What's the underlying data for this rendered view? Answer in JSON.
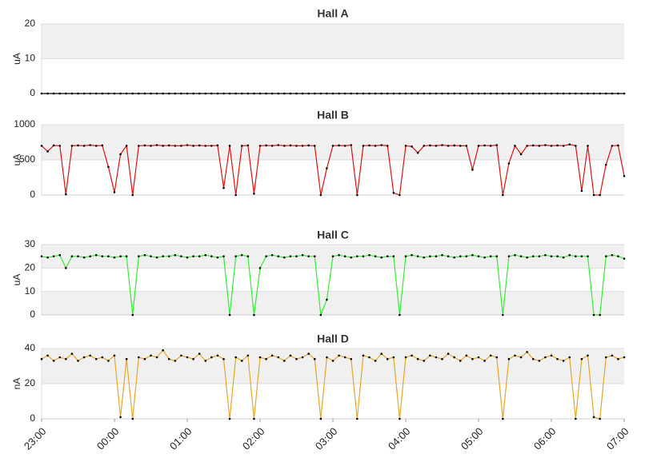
{
  "chart_data": [
    {
      "type": "line",
      "title": "Hall A",
      "y_label": "uA",
      "color": "#000000",
      "marker_color": "#000000",
      "x": [
        0,
        5,
        10,
        15,
        20,
        25,
        30,
        35,
        40,
        45,
        50,
        55,
        60,
        65,
        70,
        75,
        80,
        85,
        90,
        95,
        100,
        105,
        110,
        115,
        120,
        125,
        130,
        135,
        140,
        145,
        150,
        155,
        160,
        165,
        170,
        175,
        180,
        185,
        190,
        195,
        200,
        205,
        210,
        215,
        220,
        225,
        230,
        235,
        240,
        245,
        250,
        255,
        260,
        265,
        270,
        275,
        280,
        285,
        290,
        295,
        300,
        305,
        310,
        315,
        320,
        325,
        330,
        335,
        340,
        345,
        350,
        355,
        360,
        365,
        370,
        375,
        380,
        385,
        390,
        395,
        400,
        405,
        410,
        415,
        420,
        425,
        430,
        435,
        440,
        445,
        450,
        455,
        460,
        465,
        470,
        475,
        480
      ],
      "values": [
        0,
        0,
        0,
        0,
        0,
        0,
        0,
        0,
        0,
        0,
        0,
        0,
        0,
        0,
        0,
        0,
        0,
        0,
        0,
        0,
        0,
        0,
        0,
        0,
        0,
        0,
        0,
        0,
        0,
        0,
        0,
        0,
        0,
        0,
        0,
        0,
        0,
        0,
        0,
        0,
        0,
        0,
        0,
        0,
        0,
        0,
        0,
        0,
        0,
        0,
        0,
        0,
        0,
        0,
        0,
        0,
        0,
        0,
        0,
        0,
        0,
        0,
        0,
        0,
        0,
        0,
        0,
        0,
        0,
        0,
        0,
        0,
        0,
        0,
        0,
        0,
        0,
        0,
        0,
        0,
        0,
        0,
        0,
        0,
        0,
        0,
        0,
        0,
        0,
        0,
        0,
        0,
        0,
        0,
        0,
        0,
        0
      ],
      "xlim": [
        0,
        480
      ],
      "ylim": [
        0,
        20
      ],
      "yticks": [
        0,
        10,
        20
      ]
    },
    {
      "type": "line",
      "title": "Hall B",
      "y_label": "uA",
      "color": "#e01010",
      "marker_color": "#000000",
      "x": [
        0,
        5,
        10,
        15,
        20,
        25,
        30,
        35,
        40,
        45,
        50,
        55,
        60,
        65,
        70,
        75,
        80,
        85,
        90,
        95,
        100,
        105,
        110,
        115,
        120,
        125,
        130,
        135,
        140,
        145,
        150,
        155,
        160,
        165,
        170,
        175,
        180,
        185,
        190,
        195,
        200,
        205,
        210,
        215,
        220,
        225,
        230,
        235,
        240,
        245,
        250,
        255,
        260,
        265,
        270,
        275,
        280,
        285,
        290,
        295,
        300,
        305,
        310,
        315,
        320,
        325,
        330,
        335,
        340,
        345,
        350,
        355,
        360,
        365,
        370,
        375,
        380,
        385,
        390,
        395,
        400,
        405,
        410,
        415,
        420,
        425,
        430,
        435,
        440,
        445,
        450,
        455,
        460,
        465,
        470,
        475,
        480
      ],
      "values": [
        700,
        620,
        705,
        700,
        10,
        700,
        705,
        700,
        710,
        700,
        705,
        400,
        40,
        580,
        700,
        0,
        700,
        705,
        700,
        710,
        700,
        705,
        700,
        700,
        710,
        700,
        705,
        700,
        700,
        705,
        100,
        700,
        0,
        700,
        705,
        20,
        700,
        705,
        700,
        710,
        700,
        705,
        700,
        700,
        705,
        700,
        0,
        380,
        700,
        705,
        700,
        710,
        0,
        700,
        705,
        700,
        710,
        700,
        30,
        0,
        700,
        690,
        600,
        700,
        705,
        700,
        710,
        700,
        705,
        700,
        700,
        360,
        700,
        705,
        700,
        710,
        0,
        450,
        700,
        580,
        700,
        705,
        700,
        710,
        700,
        705,
        700,
        720,
        700,
        60,
        700,
        0,
        0,
        430,
        700,
        705,
        270
      ],
      "xlim": [
        0,
        480
      ],
      "ylim": [
        0,
        1000
      ],
      "yticks": [
        0,
        500,
        1000
      ]
    },
    {
      "type": "line",
      "title": "Hall C",
      "y_label": "uA",
      "color": "#33ee33",
      "marker_color": "#000000",
      "x": [
        0,
        5,
        10,
        15,
        20,
        25,
        30,
        35,
        40,
        45,
        50,
        55,
        60,
        65,
        70,
        75,
        80,
        85,
        90,
        95,
        100,
        105,
        110,
        115,
        120,
        125,
        130,
        135,
        140,
        145,
        150,
        155,
        160,
        165,
        170,
        175,
        180,
        185,
        190,
        195,
        200,
        205,
        210,
        215,
        220,
        225,
        230,
        235,
        240,
        245,
        250,
        255,
        260,
        265,
        270,
        275,
        280,
        285,
        290,
        295,
        300,
        305,
        310,
        315,
        320,
        325,
        330,
        335,
        340,
        345,
        350,
        355,
        360,
        365,
        370,
        375,
        380,
        385,
        390,
        395,
        400,
        405,
        410,
        415,
        420,
        425,
        430,
        435,
        440,
        445,
        450,
        455,
        460,
        465,
        470,
        475,
        480
      ],
      "values": [
        25,
        24.5,
        25,
        25.5,
        20,
        25,
        25,
        24.5,
        25,
        25.5,
        25,
        25,
        24.5,
        25,
        25,
        0,
        25,
        25.5,
        25,
        24.5,
        25,
        25,
        25.5,
        25,
        24.5,
        25,
        25,
        25.5,
        25,
        24.5,
        25,
        0,
        25,
        25.5,
        25,
        0,
        20,
        25,
        25.5,
        25,
        24.5,
        25,
        25,
        25.5,
        25,
        25,
        0,
        6.5,
        25,
        25.5,
        25,
        24.5,
        25,
        25,
        25.5,
        25,
        24.5,
        25,
        25,
        0,
        25,
        25.5,
        25,
        24.5,
        25,
        25,
        25.5,
        25,
        24.5,
        25,
        25,
        25.5,
        25,
        24.5,
        25,
        25,
        0,
        25,
        25.5,
        25,
        24.5,
        25,
        25,
        25.5,
        25,
        25,
        24.5,
        25.5,
        25,
        25,
        25,
        0,
        0,
        25,
        25.5,
        25,
        24
      ],
      "xlim": [
        0,
        480
      ],
      "ylim": [
        0,
        30
      ],
      "yticks": [
        0,
        10,
        20,
        30
      ]
    },
    {
      "type": "line",
      "title": "Hall D",
      "y_label": "nA",
      "color": "#e6a628",
      "marker_color": "#000000",
      "x": [
        0,
        5,
        10,
        15,
        20,
        25,
        30,
        35,
        40,
        45,
        50,
        55,
        60,
        65,
        70,
        75,
        80,
        85,
        90,
        95,
        100,
        105,
        110,
        115,
        120,
        125,
        130,
        135,
        140,
        145,
        150,
        155,
        160,
        165,
        170,
        175,
        180,
        185,
        190,
        195,
        200,
        205,
        210,
        215,
        220,
        225,
        230,
        235,
        240,
        245,
        250,
        255,
        260,
        265,
        270,
        275,
        280,
        285,
        290,
        295,
        300,
        305,
        310,
        315,
        320,
        325,
        330,
        335,
        340,
        345,
        350,
        355,
        360,
        365,
        370,
        375,
        380,
        385,
        390,
        395,
        400,
        405,
        410,
        415,
        420,
        425,
        430,
        435,
        440,
        445,
        450,
        455,
        460,
        465,
        470,
        475,
        480
      ],
      "values": [
        34,
        36,
        33,
        35,
        34,
        37,
        33,
        35,
        36,
        34,
        35,
        33,
        36,
        1,
        34,
        0,
        35,
        34,
        36,
        35,
        39,
        34,
        33,
        36,
        35,
        34,
        37,
        33,
        35,
        36,
        34,
        0,
        35,
        33,
        36,
        0,
        35,
        34,
        36,
        35,
        33,
        36,
        34,
        35,
        37,
        34,
        0,
        35,
        33,
        36,
        35,
        34,
        0,
        36,
        35,
        33,
        37,
        34,
        35,
        0,
        35,
        36,
        34,
        33,
        36,
        35,
        34,
        37,
        35,
        33,
        36,
        34,
        35,
        33,
        36,
        35,
        0,
        34,
        36,
        35,
        38,
        34,
        33,
        35,
        36,
        34,
        33,
        35,
        0,
        34,
        36,
        1,
        0,
        35,
        36,
        34,
        35
      ],
      "xlim": [
        0,
        480
      ],
      "ylim": [
        0,
        40
      ],
      "yticks": [
        0,
        20,
        40
      ],
      "xticks": [
        {
          "value": 0,
          "label": "23:00"
        },
        {
          "value": 60,
          "label": "00:00"
        },
        {
          "value": 120,
          "label": "01:00"
        },
        {
          "value": 180,
          "label": "02:00"
        },
        {
          "value": 240,
          "label": "03:00"
        },
        {
          "value": 300,
          "label": "04:00"
        },
        {
          "value": 360,
          "label": "05:00"
        },
        {
          "value": 420,
          "label": "06:00"
        },
        {
          "value": 480,
          "label": "07:00"
        }
      ]
    }
  ]
}
